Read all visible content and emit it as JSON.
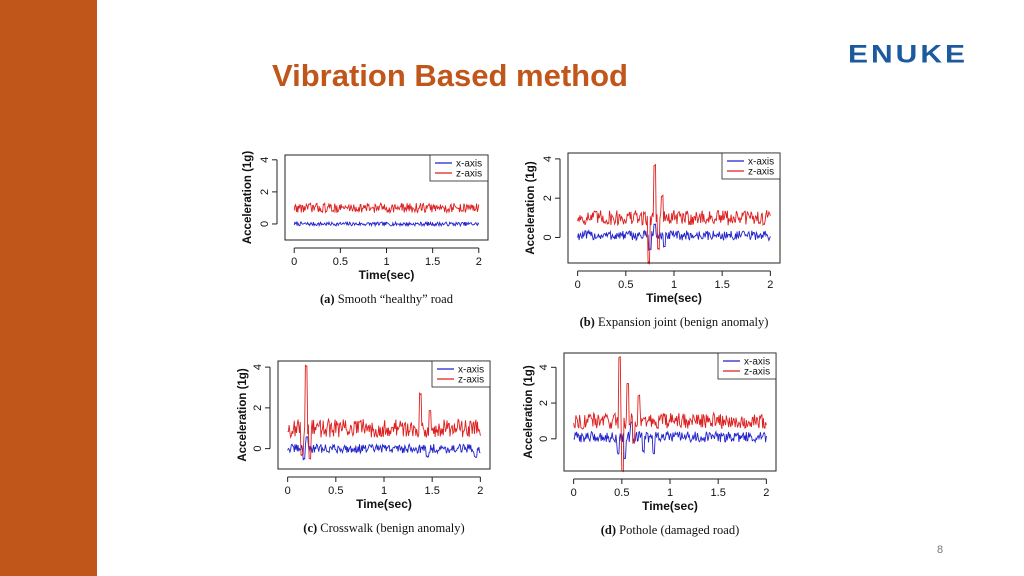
{
  "slide": {
    "title": "Vibration Based method",
    "logo_text": "ENUKE",
    "page_number": "8",
    "accent_color": "#c0561a",
    "logo_color": "#1c5aa0"
  },
  "chart_data": [
    {
      "type": "line",
      "caption_letter": "(a)",
      "caption_text": "Smooth “healthy” road",
      "xlabel": "Time(sec)",
      "ylabel": "Acceleration (1g)",
      "xlim": [
        -0.1,
        2.1
      ],
      "ylim": [
        -1.0,
        4.3
      ],
      "xticks": [
        0,
        0.5,
        1,
        1.5,
        2
      ],
      "xtick_labels": [
        "0",
        "0.5",
        "1",
        "1.5",
        "2"
      ],
      "yticks": [
        0,
        2,
        4
      ],
      "ytick_labels": [
        "0",
        "2",
        "4"
      ],
      "legend_position": "top-right",
      "series": [
        {
          "name": "x-axis",
          "color": "#2222cc",
          "baseline": 0.0,
          "noise": 0.12,
          "spikes": []
        },
        {
          "name": "z-axis",
          "color": "#dd1f1f",
          "baseline": 1.0,
          "noise": 0.3,
          "spikes": []
        }
      ]
    },
    {
      "type": "line",
      "caption_letter": "(b)",
      "caption_text": "Expansion joint (benign anomaly)",
      "xlabel": "Time(sec)",
      "ylabel": "Acceleration (1g)",
      "xlim": [
        -0.1,
        2.1
      ],
      "ylim": [
        -1.3,
        4.3
      ],
      "xticks": [
        0,
        0.5,
        1,
        1.5,
        2
      ],
      "xtick_labels": [
        "0",
        "0.5",
        "1",
        "1.5",
        "2"
      ],
      "yticks": [
        0,
        2,
        4
      ],
      "ytick_labels": [
        "0",
        "2",
        "4"
      ],
      "legend_position": "top-right",
      "series": [
        {
          "name": "x-axis",
          "color": "#2222cc",
          "baseline": 0.1,
          "noise": 0.25,
          "spikes": [
            [
              0.75,
              -0.6
            ],
            [
              0.8,
              0.7
            ],
            [
              0.9,
              -0.5
            ]
          ]
        },
        {
          "name": "z-axis",
          "color": "#dd1f1f",
          "baseline": 1.0,
          "noise": 0.4,
          "spikes": [
            [
              0.74,
              -1.3
            ],
            [
              0.8,
              3.7
            ],
            [
              0.84,
              -0.6
            ],
            [
              0.88,
              2.1
            ]
          ]
        }
      ]
    },
    {
      "type": "line",
      "caption_letter": "(c)",
      "caption_text": "Crosswalk (benign anomaly)",
      "xlabel": "Time(sec)",
      "ylabel": "Acceleration (1g)",
      "xlim": [
        -0.1,
        2.1
      ],
      "ylim": [
        -1.0,
        4.3
      ],
      "xticks": [
        0,
        0.5,
        1,
        1.5,
        2
      ],
      "xtick_labels": [
        "0",
        "0.5",
        "1",
        "1.5",
        "2"
      ],
      "yticks": [
        0,
        2,
        4
      ],
      "ytick_labels": [
        "0",
        "2",
        "4"
      ],
      "legend_position": "top-right",
      "series": [
        {
          "name": "x-axis",
          "color": "#2222cc",
          "baseline": 0.0,
          "noise": 0.22,
          "spikes": [
            [
              0.17,
              -0.5
            ],
            [
              0.2,
              0.6
            ],
            [
              1.45,
              -0.4
            ],
            [
              1.95,
              -0.4
            ]
          ]
        },
        {
          "name": "z-axis",
          "color": "#dd1f1f",
          "baseline": 1.0,
          "noise": 0.45,
          "spikes": [
            [
              0.15,
              -0.3
            ],
            [
              0.19,
              4.1
            ],
            [
              0.23,
              -0.5
            ],
            [
              1.38,
              2.7
            ],
            [
              1.48,
              1.9
            ]
          ]
        }
      ]
    },
    {
      "type": "line",
      "caption_letter": "(d)",
      "caption_text": "Pothole (damaged road)",
      "xlabel": "Time(sec)",
      "ylabel": "Acceleration (1g)",
      "xlim": [
        -0.1,
        2.1
      ],
      "ylim": [
        -1.8,
        4.8
      ],
      "xticks": [
        0,
        0.5,
        1,
        1.5,
        2
      ],
      "xtick_labels": [
        "0",
        "0.5",
        "1",
        "1.5",
        "2"
      ],
      "yticks": [
        0,
        2,
        4
      ],
      "ytick_labels": [
        "0",
        "2",
        "4"
      ],
      "legend_position": "top-right",
      "series": [
        {
          "name": "x-axis",
          "color": "#2222cc",
          "baseline": 0.1,
          "noise": 0.3,
          "spikes": [
            [
              0.46,
              -0.8
            ],
            [
              0.53,
              -1.1
            ],
            [
              0.6,
              0.9
            ],
            [
              0.72,
              -0.7
            ],
            [
              0.83,
              -0.8
            ]
          ]
        },
        {
          "name": "z-axis",
          "color": "#dd1f1f",
          "baseline": 1.0,
          "noise": 0.45,
          "spikes": [
            [
              0.48,
              4.6
            ],
            [
              0.51,
              -1.8
            ],
            [
              0.56,
              3.1
            ],
            [
              0.62,
              -0.2
            ],
            [
              0.68,
              2.4
            ]
          ]
        }
      ]
    }
  ]
}
